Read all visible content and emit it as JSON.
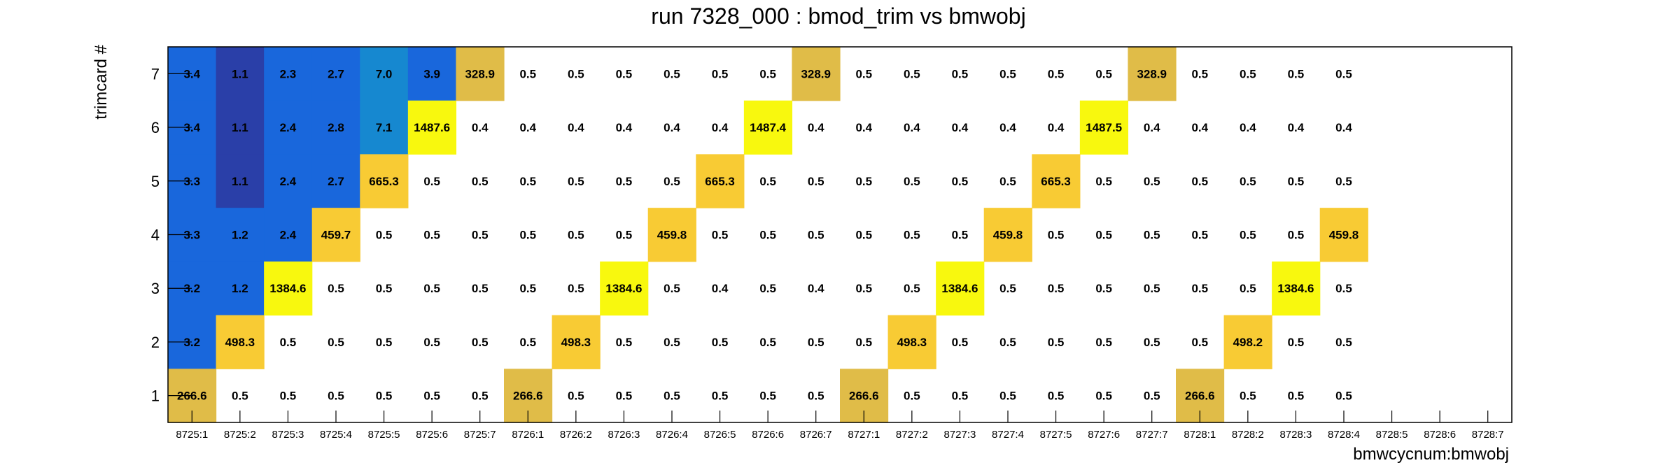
{
  "chart_data": {
    "type": "heatmap",
    "title": "run 7328_000 : bmod_trim vs bmwobj",
    "xlabel": "bmwcycnum:bmwobj",
    "ylabel": "trimcard #",
    "x_categories": [
      "8725:1",
      "8725:2",
      "8725:3",
      "8725:4",
      "8725:5",
      "8725:6",
      "8725:7",
      "8726:1",
      "8726:2",
      "8726:3",
      "8726:4",
      "8726:5",
      "8726:6",
      "8726:7",
      "8727:1",
      "8727:2",
      "8727:3",
      "8727:4",
      "8727:5",
      "8727:6",
      "8727:7",
      "8728:1",
      "8728:2",
      "8728:3",
      "8728:4",
      "8728:5",
      "8728:6",
      "8728:7"
    ],
    "y_categories": [
      "1",
      "2",
      "3",
      "4",
      "5",
      "6",
      "7"
    ],
    "rows": [
      {
        "y": "7",
        "values": [
          "3.4",
          "1.1",
          "2.3",
          "2.7",
          "7.0",
          "3.9",
          "328.9",
          "0.5",
          "0.5",
          "0.5",
          "0.5",
          "0.5",
          "0.5",
          "328.9",
          "0.5",
          "0.5",
          "0.5",
          "0.5",
          "0.5",
          "0.5",
          "328.9",
          "0.5",
          "0.5",
          "0.5",
          "0.5",
          null,
          null,
          null
        ]
      },
      {
        "y": "6",
        "values": [
          "3.4",
          "1.1",
          "2.4",
          "2.8",
          "7.1",
          "1487.6",
          "0.4",
          "0.4",
          "0.4",
          "0.4",
          "0.4",
          "0.4",
          "1487.4",
          "0.4",
          "0.4",
          "0.4",
          "0.4",
          "0.4",
          "0.4",
          "1487.5",
          "0.4",
          "0.4",
          "0.4",
          "0.4",
          "0.4",
          null,
          null,
          null
        ]
      },
      {
        "y": "5",
        "values": [
          "3.3",
          "1.1",
          "2.4",
          "2.7",
          "665.3",
          "0.5",
          "0.5",
          "0.5",
          "0.5",
          "0.5",
          "0.5",
          "665.3",
          "0.5",
          "0.5",
          "0.5",
          "0.5",
          "0.5",
          "0.5",
          "665.3",
          "0.5",
          "0.5",
          "0.5",
          "0.5",
          "0.5",
          "0.5",
          null,
          null,
          null
        ]
      },
      {
        "y": "4",
        "values": [
          "3.3",
          "1.2",
          "2.4",
          "459.7",
          "0.5",
          "0.5",
          "0.5",
          "0.5",
          "0.5",
          "0.5",
          "459.8",
          "0.5",
          "0.5",
          "0.5",
          "0.5",
          "0.5",
          "0.5",
          "459.8",
          "0.5",
          "0.5",
          "0.5",
          "0.5",
          "0.5",
          "0.5",
          "459.8",
          null,
          null,
          null
        ]
      },
      {
        "y": "3",
        "values": [
          "3.2",
          "1.2",
          "1384.6",
          "0.5",
          "0.5",
          "0.5",
          "0.5",
          "0.5",
          "0.5",
          "1384.6",
          "0.5",
          "0.4",
          "0.5",
          "0.4",
          "0.5",
          "0.5",
          "1384.6",
          "0.5",
          "0.5",
          "0.5",
          "0.5",
          "0.5",
          "0.5",
          "1384.6",
          "0.5",
          null,
          null,
          null
        ]
      },
      {
        "y": "2",
        "values": [
          "3.2",
          "498.3",
          "0.5",
          "0.5",
          "0.5",
          "0.5",
          "0.5",
          "0.5",
          "498.3",
          "0.5",
          "0.5",
          "0.5",
          "0.5",
          "0.5",
          "0.5",
          "498.3",
          "0.5",
          "0.5",
          "0.5",
          "0.5",
          "0.5",
          "0.5",
          "498.2",
          "0.5",
          "0.5",
          null,
          null,
          null
        ]
      },
      {
        "y": "1",
        "values": [
          "266.6",
          "0.5",
          "0.5",
          "0.5",
          "0.5",
          "0.5",
          "0.5",
          "266.6",
          "0.5",
          "0.5",
          "0.5",
          "0.5",
          "0.5",
          "0.5",
          "266.6",
          "0.5",
          "0.5",
          "0.5",
          "0.5",
          "0.5",
          "0.5",
          "266.6",
          "0.5",
          "0.5",
          "0.5",
          null,
          null,
          null
        ]
      }
    ],
    "grid": false,
    "legend": "none",
    "colors": {
      "navy": "#2a3fa8",
      "blue": "#1967dc",
      "teal_blue": "#1688d0",
      "gold": "#e0bc48",
      "orange_yellow": "#f8cb34",
      "yellow": "#f8f80e"
    }
  }
}
